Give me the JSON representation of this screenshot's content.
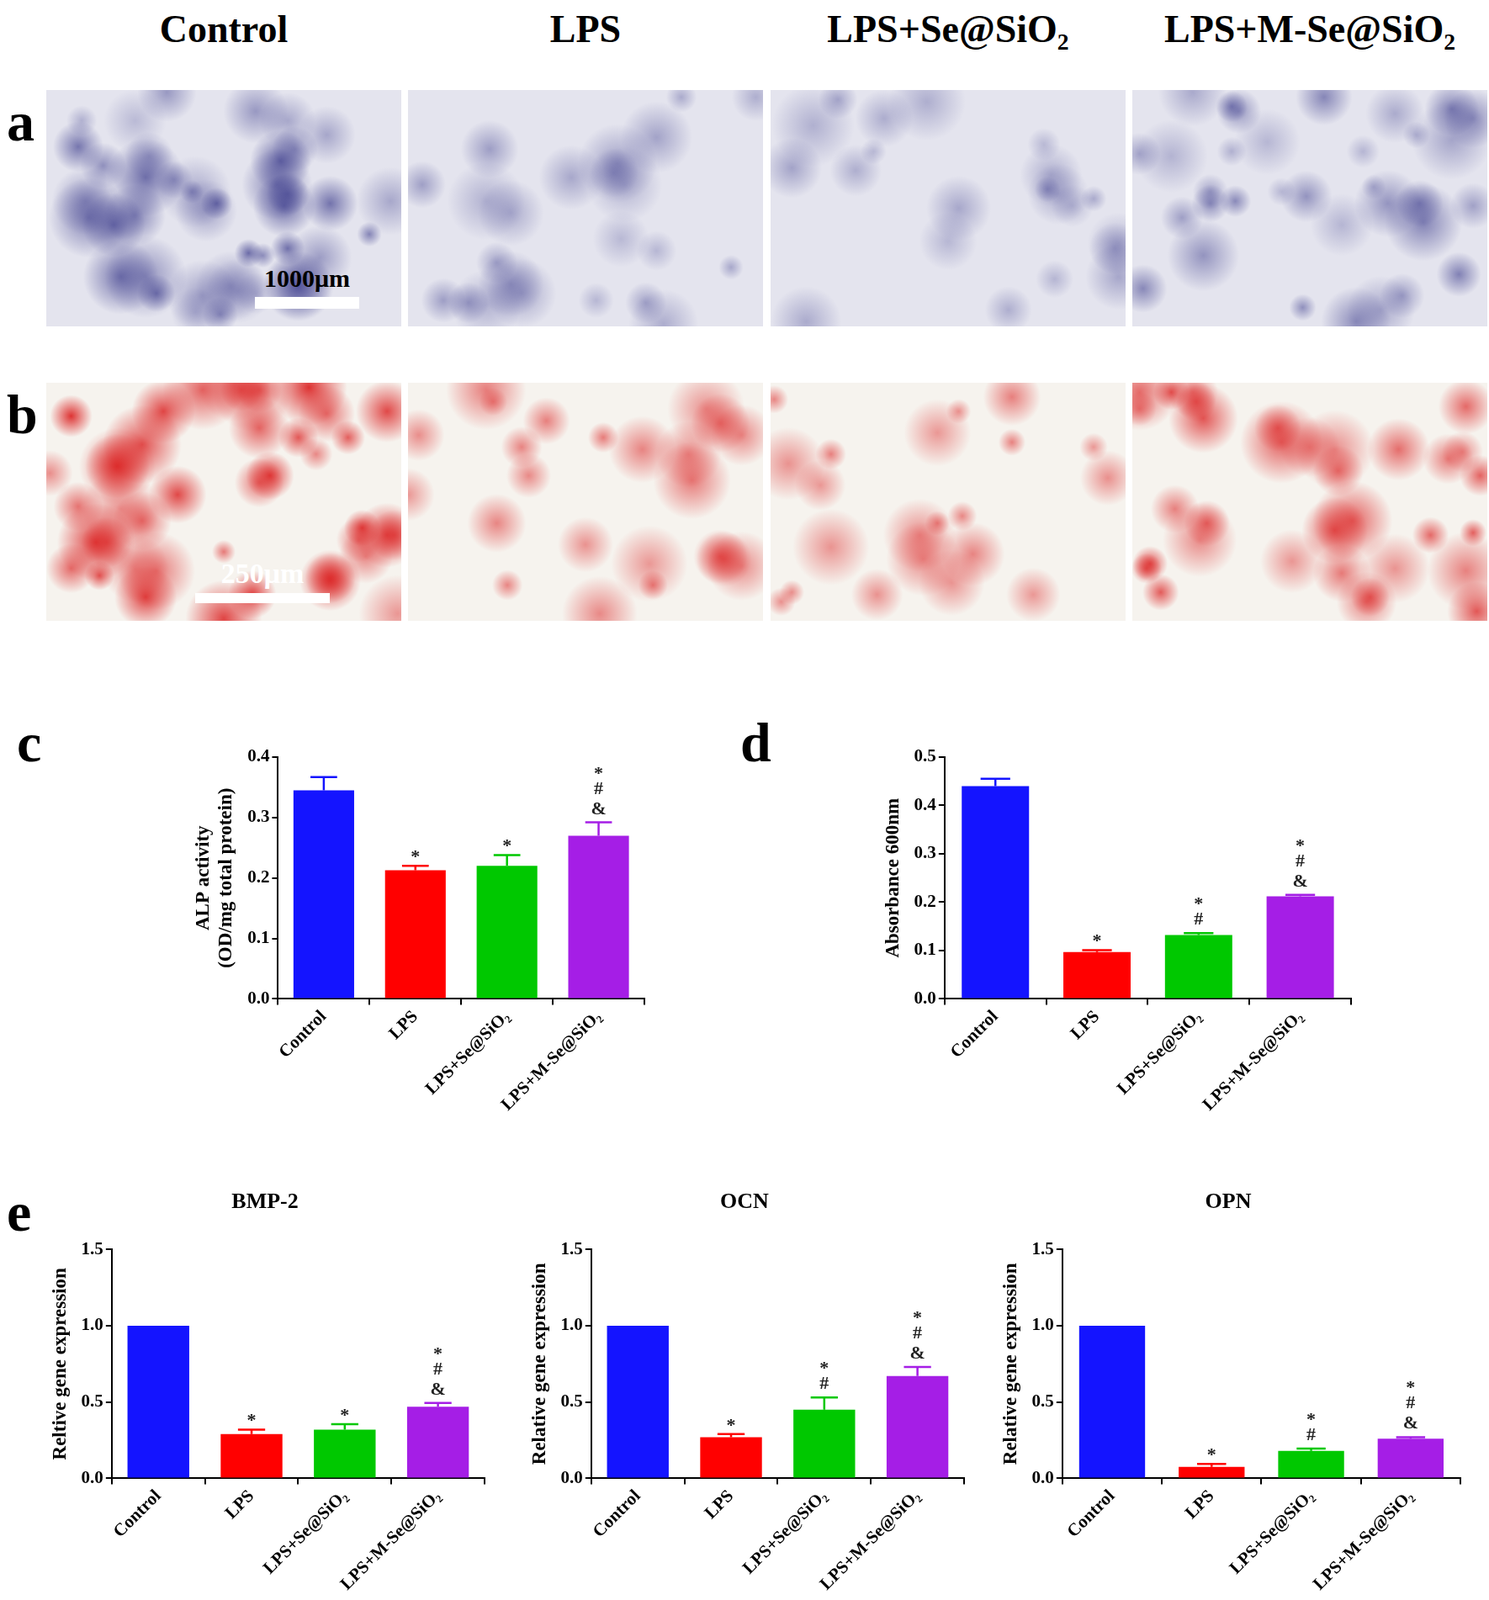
{
  "headers": [
    "Control",
    "LPS",
    "LPS+Se@SiO₂",
    "LPS+M-Se@SiO₂"
  ],
  "image_panels": [
    {
      "panel": "a",
      "scale_bar": "1000μm"
    },
    {
      "panel": "b",
      "scale_bar": "250μm"
    }
  ],
  "chart_data": [
    {
      "panel": "c",
      "type": "bar",
      "y_label": [
        "ALP activity",
        "(OD/mg total protein)"
      ],
      "categories": [
        "Control",
        "LPS",
        "LPS+Se@SiO₂",
        "LPS+M-Se@SiO₂"
      ],
      "values": [
        0.345,
        0.213,
        0.22,
        0.27
      ],
      "errors": [
        0.022,
        0.007,
        0.018,
        0.022
      ],
      "significance": [
        [],
        [
          "*"
        ],
        [
          "*"
        ],
        [
          "*",
          "#",
          "&"
        ]
      ],
      "colors": [
        "#1414ff",
        "#ff0000",
        "#00c800",
        "#a51ee6"
      ],
      "ylim": [
        0,
        0.4
      ],
      "yticks": [
        {
          "value": 0,
          "label": "0.0"
        },
        0.1,
        0.2,
        0.3,
        0.4
      ],
      "grid": false
    },
    {
      "panel": "d",
      "type": "bar",
      "y_label": "Absorbance 600nm",
      "categories": [
        "Control",
        "LPS",
        "LPS+Se@SiO₂",
        "LPS+M-Se@SiO₂"
      ],
      "values": [
        0.44,
        0.097,
        0.132,
        0.212
      ],
      "errors": [
        0.015,
        0.004,
        0.004,
        0.003
      ],
      "significance": [
        [],
        [
          "*"
        ],
        [
          "*",
          "#"
        ],
        [
          "*",
          "#",
          "&"
        ]
      ],
      "colors": [
        "#1414ff",
        "#ff0000",
        "#00c800",
        "#a51ee6"
      ],
      "ylim": [
        0,
        0.5
      ],
      "yticks": [
        {
          "value": 0,
          "label": "0.0"
        },
        0.1,
        0.2,
        0.3,
        0.4,
        0.5
      ],
      "grid": false
    },
    {
      "panel": "e",
      "type": "bar",
      "title": "BMP-2",
      "y_label": "Reltive gene expression",
      "categories": [
        "Control",
        "LPS",
        "LPS+Se@SiO₂",
        "LPS+M-Se@SiO₂"
      ],
      "values": [
        1.0,
        0.29,
        0.32,
        0.47
      ],
      "errors": [
        0,
        0.03,
        0.035,
        0.025
      ],
      "significance": [
        [],
        [
          "*"
        ],
        [
          "*"
        ],
        [
          "*",
          "#",
          "&"
        ]
      ],
      "colors": [
        "#1414ff",
        "#ff0000",
        "#00c800",
        "#a51ee6"
      ],
      "ylim": [
        0,
        1.5
      ],
      "yticks": [
        {
          "value": 0,
          "label": "0.0"
        },
        0.5,
        {
          "value": 1,
          "label": "1.0"
        },
        1.5
      ],
      "grid": false
    },
    {
      "type": "bar",
      "title": "OCN",
      "y_label": "Relative gene expression",
      "categories": [
        "Control",
        "LPS",
        "LPS+Se@SiO₂",
        "LPS+M-Se@SiO₂"
      ],
      "values": [
        1.0,
        0.27,
        0.45,
        0.67
      ],
      "errors": [
        0,
        0.02,
        0.08,
        0.06
      ],
      "significance": [
        [],
        [
          "*"
        ],
        [
          "*",
          "#"
        ],
        [
          "*",
          "#",
          "&"
        ]
      ],
      "colors": [
        "#1414ff",
        "#ff0000",
        "#00c800",
        "#a51ee6"
      ],
      "ylim": [
        0,
        1.5
      ],
      "yticks": [
        {
          "value": 0,
          "label": "0.0"
        },
        0.5,
        {
          "value": 1,
          "label": "1.0"
        },
        1.5
      ],
      "grid": false
    },
    {
      "type": "bar",
      "title": "OPN",
      "y_label": "Relative gene expression",
      "categories": [
        "Control",
        "LPS",
        "LPS+Se@SiO₂",
        "LPS+M-Se@SiO₂"
      ],
      "values": [
        1.0,
        0.075,
        0.18,
        0.26
      ],
      "errors": [
        0,
        0.02,
        0.015,
        0.01
      ],
      "significance": [
        [],
        [
          "*"
        ],
        [
          "*",
          "#"
        ],
        [
          "*",
          "#",
          "&"
        ]
      ],
      "colors": [
        "#1414ff",
        "#ff0000",
        "#00c800",
        "#a51ee6"
      ],
      "ylim": [
        0,
        1.5
      ],
      "yticks": [
        {
          "value": 0,
          "label": "0.0"
        },
        0.5,
        {
          "value": 1,
          "label": "1.0"
        },
        1.5
      ],
      "grid": false
    }
  ]
}
